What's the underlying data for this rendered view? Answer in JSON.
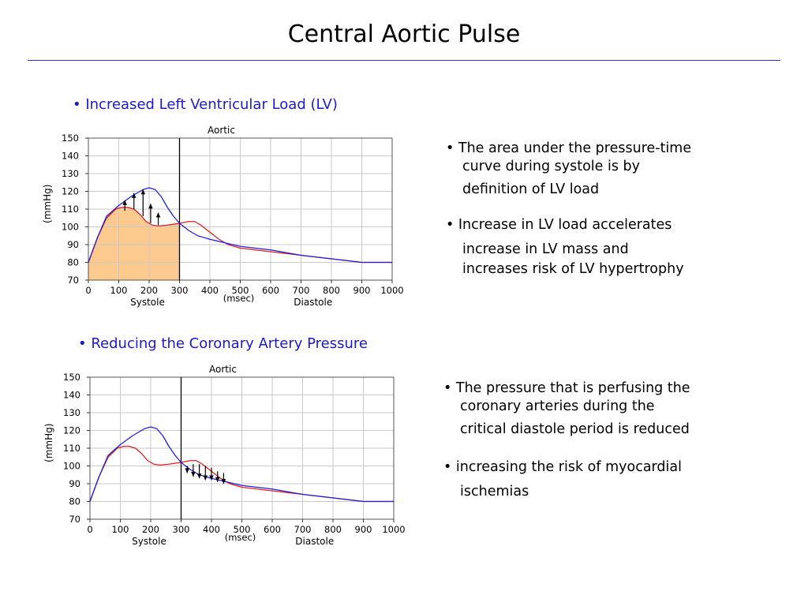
{
  "title": "Central Aortic Pulse",
  "sections": [
    {
      "heading": "• Increased Left Ventricular Load (LV)",
      "bullets": [
        [
          "• The area under the pressure-time",
          "curve during systole is by",
          "definition of LV load"
        ],
        [
          "• Increase in LV load accelerates",
          "increase in LV mass and",
          "increases risk of LV hypertrophy"
        ]
      ]
    },
    {
      "heading": "• Reducing the Coronary Artery Pressure",
      "bullets": [
        [
          "• The pressure that is perfusing the",
          "coronary arteries during the",
          "critical diastole period is reduced"
        ],
        [
          "• increasing the risk of myocardial",
          "ischemias"
        ]
      ]
    }
  ],
  "chart_data": [
    {
      "type": "line",
      "title": "Aortic",
      "ylabel": "(mmHg)",
      "xlabel": "(msec)",
      "xlim": [
        0,
        1000
      ],
      "ylim": [
        70,
        150
      ],
      "x_ticks": [
        0,
        100,
        200,
        300,
        400,
        500,
        600,
        700,
        800,
        900,
        1000
      ],
      "y_ticks": [
        70,
        80,
        90,
        100,
        110,
        120,
        130,
        140,
        150
      ],
      "grid": true,
      "phase_labels": [
        "Systole",
        "Diastole"
      ],
      "phase_boundary": 300,
      "shaded_area": {
        "series": "red",
        "from": 0,
        "to": 300,
        "color": "#fcc98f"
      },
      "arrows": {
        "direction": "up",
        "x": [
          120,
          150,
          180,
          205,
          230
        ],
        "from": [
          109,
          110,
          106,
          102,
          101
        ],
        "to": [
          115,
          119,
          121,
          113,
          108
        ]
      },
      "series": [
        {
          "color": "#1f1fdc",
          "x": [
            0,
            30,
            60,
            100,
            140,
            180,
            200,
            220,
            240,
            260,
            280,
            300,
            330,
            360,
            400,
            450,
            500,
            550,
            600,
            700,
            800,
            900,
            1000
          ],
          "y": [
            80,
            94,
            106,
            112,
            117,
            121,
            122,
            121,
            117,
            111,
            106,
            102,
            98,
            95,
            93,
            91,
            89,
            88,
            87,
            84,
            82,
            80,
            80
          ]
        },
        {
          "color": "#dc1f1f",
          "x": [
            0,
            30,
            60,
            90,
            110,
            130,
            150,
            170,
            190,
            210,
            230,
            260,
            300,
            330,
            350,
            370,
            400,
            430,
            460,
            500,
            550,
            600,
            700,
            800,
            900,
            1000
          ],
          "y": [
            80,
            94,
            105,
            110,
            111,
            111,
            110,
            107,
            103,
            101,
            100.5,
            101,
            102,
            103,
            103,
            101,
            97,
            93,
            90,
            88,
            87,
            86,
            84,
            82,
            80,
            80
          ]
        }
      ]
    },
    {
      "type": "line",
      "title": "Aortic",
      "ylabel": "(mmHg)",
      "xlabel": "(msec)",
      "xlim": [
        0,
        1000
      ],
      "ylim": [
        70,
        150
      ],
      "x_ticks": [
        0,
        100,
        200,
        300,
        400,
        500,
        600,
        700,
        800,
        900,
        1000
      ],
      "y_ticks": [
        70,
        80,
        90,
        100,
        110,
        120,
        130,
        140,
        150
      ],
      "grid": true,
      "phase_labels": [
        "Systole",
        "Diastole"
      ],
      "phase_boundary": 300,
      "arrows": {
        "direction": "down",
        "x": [
          320,
          340,
          360,
          380,
          400,
          420,
          440
        ],
        "from": [
          100,
          101,
          101,
          100,
          99,
          97,
          96
        ],
        "to": [
          96,
          94,
          93,
          92,
          92,
          91,
          90
        ]
      },
      "series": [
        {
          "color": "#1f1fdc",
          "x": [
            0,
            30,
            60,
            100,
            140,
            180,
            200,
            220,
            240,
            260,
            280,
            300,
            330,
            360,
            400,
            450,
            500,
            550,
            600,
            700,
            800,
            900,
            1000
          ],
          "y": [
            80,
            94,
            106,
            112,
            117,
            121,
            122,
            121,
            117,
            111,
            106,
            102,
            98,
            95,
            93,
            91,
            89,
            88,
            87,
            84,
            82,
            80,
            80
          ]
        },
        {
          "color": "#dc1f1f",
          "x": [
            0,
            30,
            60,
            90,
            110,
            130,
            150,
            170,
            190,
            210,
            230,
            260,
            300,
            330,
            350,
            370,
            400,
            430,
            460,
            500,
            550,
            600,
            700,
            800,
            900,
            1000
          ],
          "y": [
            80,
            94,
            105,
            110,
            111,
            111,
            110,
            107,
            103,
            101,
            100.5,
            101,
            102,
            103,
            103,
            101,
            97,
            93,
            90,
            88,
            87,
            86,
            84,
            82,
            80,
            80
          ]
        }
      ]
    }
  ]
}
